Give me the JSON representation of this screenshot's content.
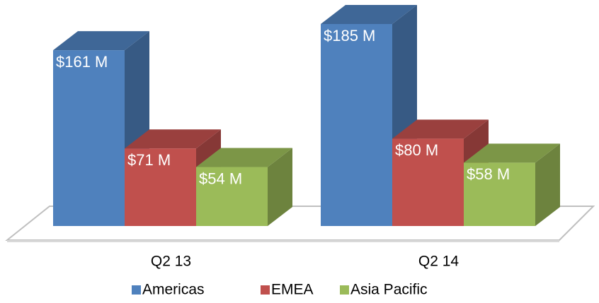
{
  "chart_data": {
    "type": "bar3d",
    "categories": [
      "Q2 13",
      "Q2 14"
    ],
    "series": [
      {
        "name": "Americas",
        "color": "#4f81bd",
        "values": [
          161,
          185
        ],
        "value_labels": [
          "$161 M",
          "$185 M"
        ]
      },
      {
        "name": "EMEA",
        "color": "#c0504d",
        "values": [
          71,
          80
        ],
        "value_labels": [
          "$71 M",
          "$80 M"
        ]
      },
      {
        "name": "Asia Pacific",
        "color": "#9bbb59",
        "values": [
          54,
          58
        ],
        "value_labels": [
          "$54 M",
          "$58 M"
        ]
      }
    ]
  }
}
